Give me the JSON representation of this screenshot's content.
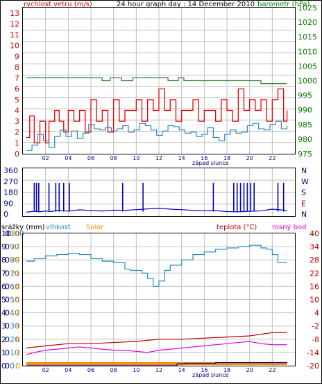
{
  "chart_data": [
    {
      "type": "line",
      "title": "24 hour graph day : 14 December 2010",
      "left_axis_label": "rychlost vetru (m/s)",
      "right_axis_label": "barometr (hPa)",
      "x_caption": "západ slunce",
      "x_tick_labels": [
        "02",
        "04",
        "06",
        "08",
        "10",
        "12",
        "14",
        "16",
        "18",
        "20",
        "22"
      ],
      "left_ticks": [
        "0",
        "1",
        "2",
        "3",
        "4",
        "5",
        "6",
        "7",
        "8",
        "9",
        "10",
        "11",
        "12",
        "13"
      ],
      "right_ticks": [
        "975",
        "980",
        "985",
        "990",
        "995",
        "1000",
        "1005",
        "1010",
        "1015",
        "1020",
        "1025"
      ],
      "left_ylim": [
        0,
        13.5
      ],
      "right_ylim": [
        975,
        1025
      ],
      "xlim": [
        0,
        24
      ],
      "grid": true,
      "series": [
        {
          "axis": "left",
          "color": "#ee0000",
          "x": [
            0.3,
            0.6,
            1,
            1.5,
            2,
            2.3,
            2.8,
            3.2,
            3.6,
            4,
            4.5,
            5,
            5.5,
            6,
            6.5,
            7,
            7.5,
            8,
            8.5,
            9,
            9.5,
            10,
            10.5,
            11,
            11.5,
            12,
            12.5,
            13,
            13.5,
            14,
            14.5,
            15,
            15.5,
            16,
            16.5,
            17,
            17.5,
            18,
            18.5,
            19,
            19.5,
            20,
            20.5,
            21,
            21.5,
            22,
            22.5,
            23,
            23.3
          ],
          "y": [
            1.5,
            3.5,
            1,
            3,
            1,
            3,
            4,
            3,
            2,
            4,
            3,
            4,
            2,
            5,
            3,
            4,
            2,
            5,
            3,
            4,
            4,
            5,
            3,
            5,
            4,
            6,
            4,
            5,
            3,
            4,
            4,
            5,
            3,
            4,
            4,
            3,
            5,
            4,
            3,
            6,
            4,
            5,
            4,
            5,
            3,
            5,
            6,
            3,
            4
          ]
        },
        {
          "axis": "left",
          "color": "#2a8ab8",
          "x": [
            0.3,
            0.8,
            1.3,
            1.8,
            2.3,
            2.8,
            3.3,
            3.8,
            4.3,
            4.8,
            5.3,
            5.8,
            6.3,
            6.8,
            7.3,
            7.8,
            8.3,
            8.8,
            9.3,
            9.8,
            10.3,
            10.8,
            11.3,
            11.8,
            12.3,
            12.8,
            13.3,
            13.8,
            14.3,
            14.8,
            15.3,
            15.8,
            16.3,
            16.8,
            17.3,
            17.8,
            18.3,
            18.8,
            19.3,
            19.8,
            20.3,
            20.8,
            21.3,
            21.8,
            22.3,
            22.8,
            23.3
          ],
          "y": [
            0.3,
            0.8,
            1.8,
            1.2,
            0.6,
            1.6,
            2.2,
            1.6,
            2.1,
            1.4,
            1.9,
            2.7,
            2.3,
            2.2,
            2.4,
            2.1,
            2.3,
            2.6,
            2.0,
            2.2,
            2.8,
            2.6,
            2.2,
            1.7,
            2.1,
            2.6,
            2.5,
            2.2,
            1.9,
            2.0,
            1.6,
            1.8,
            2.4,
            1.5,
            1.2,
            1.8,
            2.2,
            1.9,
            2.0,
            2.6,
            2.8,
            2.3,
            2.2,
            2.7,
            3.0,
            2.3,
            2.6
          ]
        },
        {
          "axis": "right",
          "color": "#2a7a2a",
          "x": [
            0.3,
            6.8,
            7,
            7.5,
            7.7,
            8.5,
            8.7,
            9.5,
            9.7,
            12.6,
            12.8,
            13.5,
            13.7,
            14,
            14.2,
            20.5,
            21,
            23.3
          ],
          "y": [
            1001,
            1001,
            1000,
            1000,
            1001,
            1001,
            1000,
            1000,
            1001,
            1001,
            1000,
            1000,
            1001,
            1001,
            1000,
            1000,
            999,
            999
          ]
        }
      ]
    },
    {
      "type": "line",
      "compass_labels": [
        "N",
        "W",
        "S",
        "E",
        "N"
      ],
      "left_ticks": [
        "0",
        "90",
        "180",
        "270",
        "360"
      ],
      "ylim": [
        0,
        360
      ],
      "series": [
        {
          "color": "#0000cc",
          "name": "",
          "x": [
            0.3,
            1,
            1.5,
            2,
            2.5,
            3,
            4,
            5,
            6,
            7,
            8,
            9,
            10,
            11,
            12,
            13,
            14,
            15,
            16,
            17,
            18,
            19,
            20,
            21,
            22,
            23.3
          ],
          "y": [
            15,
            22,
            18,
            25,
            20,
            30,
            24,
            35,
            28,
            25,
            32,
            30,
            36,
            42,
            48,
            40,
            36,
            30,
            26,
            28,
            20,
            18,
            22,
            26,
            40,
            30
          ]
        }
      ],
      "spikes_hours": [
        1.0,
        1.2,
        1.4,
        2.3,
        2.9,
        3.2,
        3.6,
        4.1,
        8.8,
        10.6,
        16.8,
        18.6,
        18.9,
        19.2,
        19.5,
        19.8,
        20.1,
        20.4,
        22.5,
        23.0
      ]
    },
    {
      "type": "line",
      "legend": [
        "srážky (mm)",
        "vlhkost",
        "Solar",
        "teplota (°C)",
        "rosný bod"
      ],
      "x_caption": "západ slunce",
      "x_tick_labels": [
        "02",
        "04",
        "06",
        "08",
        "10",
        "12",
        "14",
        "16",
        "18",
        "20",
        "22"
      ],
      "left_ticks_outer": [
        "0",
        "1",
        "2",
        "3",
        "4",
        "5",
        "6",
        "7",
        "8",
        "9",
        "10"
      ],
      "left_ticks_inner": [
        "0",
        "0",
        "0",
        "0",
        "0",
        "0",
        "0",
        "0",
        "0",
        "0",
        "0"
      ],
      "humidity_ticks": [
        "0",
        "10",
        "20",
        "30",
        "40",
        "50",
        "60",
        "70",
        "80",
        "90",
        "100"
      ],
      "solar_ticks": [
        "0",
        "3",
        "6",
        "9",
        "12",
        "15",
        "18",
        "21",
        "24",
        "27",
        "30"
      ],
      "right_ticks": [
        "40",
        "34",
        "28",
        "22",
        "16",
        "10",
        "4",
        "-2",
        "-8",
        "-14",
        "-20"
      ],
      "humidity_ylim": [
        0,
        100
      ],
      "temp_ylim": [
        -20,
        40
      ],
      "series": [
        {
          "name": "vlhkost",
          "color": "#2a8ac8",
          "x": [
            0.3,
            1,
            2,
            3,
            4,
            5,
            6,
            7,
            8,
            9,
            9.5,
            10,
            10.5,
            11,
            11.5,
            12,
            12.5,
            13,
            14,
            15,
            16,
            17,
            18,
            19,
            20,
            21,
            21.5,
            22,
            22.5,
            23.3
          ],
          "y": [
            79,
            81,
            83,
            84,
            85,
            84,
            81,
            79,
            78,
            73,
            72,
            72,
            70,
            66,
            60,
            64,
            72,
            76,
            80,
            84,
            86,
            88,
            89,
            90,
            91,
            89,
            88,
            84,
            78,
            78
          ]
        },
        {
          "name": "teplota (°C)",
          "color": "#c00000",
          "x": [
            0.3,
            2,
            4,
            6,
            8,
            10,
            12,
            14,
            16,
            18,
            20,
            22,
            23.3
          ],
          "y": [
            -12,
            -11,
            -10,
            -10,
            -9.5,
            -9,
            -8,
            -8,
            -7.5,
            -7,
            -6.5,
            -5,
            -5
          ]
        },
        {
          "name": "rosný bod",
          "color": "#dd00dd",
          "x": [
            0.3,
            1,
            2,
            3,
            4,
            5,
            6,
            7,
            8,
            9,
            10,
            11,
            12,
            13,
            14,
            15,
            16,
            17,
            18,
            19,
            20,
            21,
            22,
            23.3
          ],
          "y": [
            -15,
            -14,
            -13,
            -12.5,
            -12,
            -11.5,
            -12,
            -12.5,
            -13,
            -13,
            -13.5,
            -14,
            -13,
            -12.5,
            -12,
            -11.5,
            -11,
            -10.5,
            -10,
            -9.5,
            -9,
            -10,
            -10.5,
            -10.5
          ]
        },
        {
          "name": "Solar",
          "color": "#ff8800",
          "x": [
            0.3,
            23.3
          ],
          "y": [
            0.8,
            0.8
          ]
        },
        {
          "name": "srážky (mm)",
          "color": "#000080",
          "x": [
            0.3,
            13.2,
            13.6,
            14.3,
            17,
            23.3
          ],
          "y": [
            0,
            0,
            0.25,
            0.35,
            0.45,
            0.5
          ]
        }
      ]
    }
  ]
}
